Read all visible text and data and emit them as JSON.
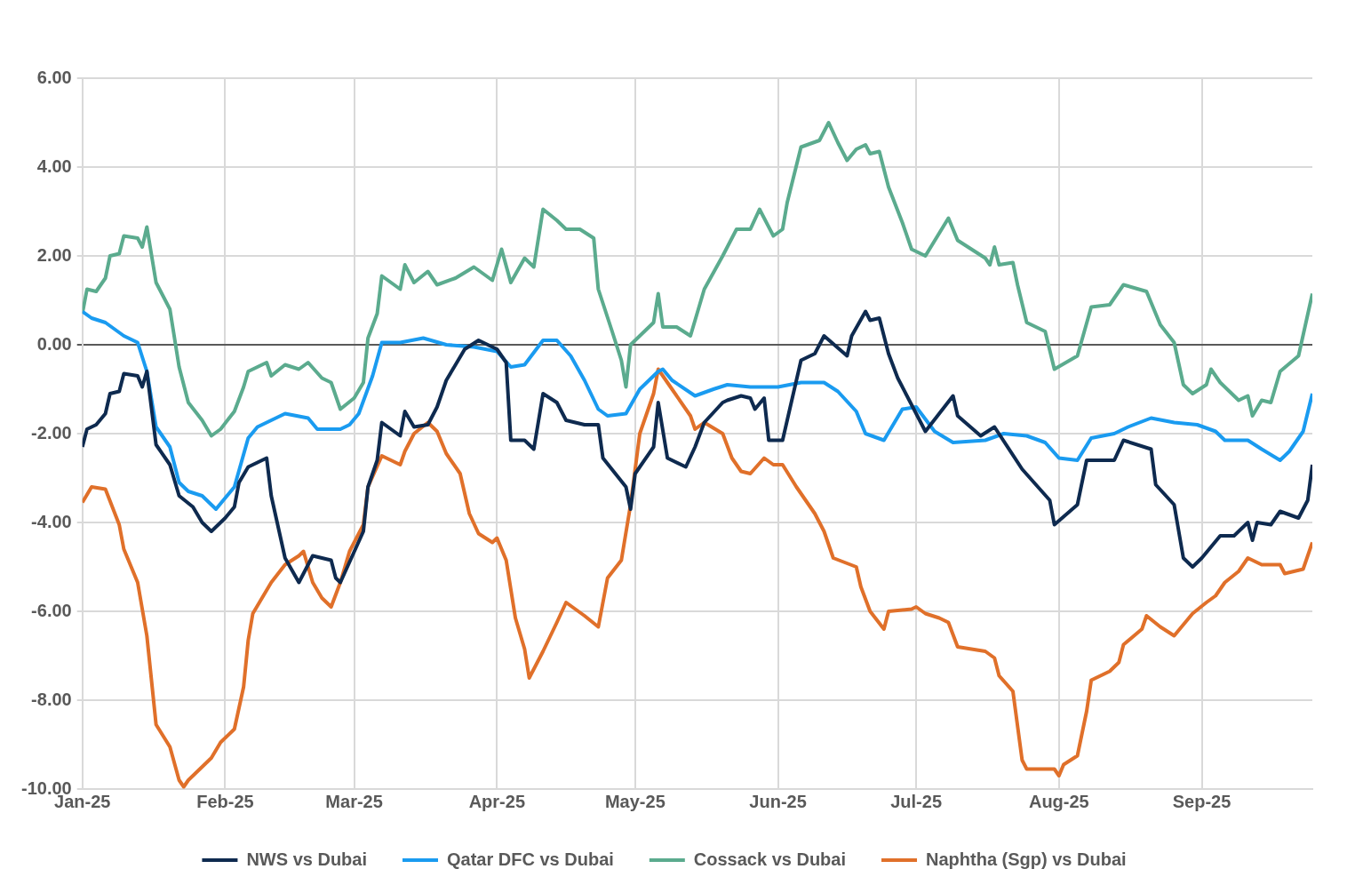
{
  "chart_data": {
    "type": "line",
    "xlim": [
      "2025-01-01",
      "2025-09-25"
    ],
    "xticks": [
      {
        "value": "2025-01-01",
        "label": "Jan-25"
      },
      {
        "value": "2025-02-01",
        "label": "Feb-25"
      },
      {
        "value": "2025-03-01",
        "label": "Mar-25"
      },
      {
        "value": "2025-04-01",
        "label": "Apr-25"
      },
      {
        "value": "2025-05-01",
        "label": "May-25"
      },
      {
        "value": "2025-06-01",
        "label": "Jun-25"
      },
      {
        "value": "2025-07-01",
        "label": "Jul-25"
      },
      {
        "value": "2025-08-01",
        "label": "Aug-25"
      },
      {
        "value": "2025-09-01",
        "label": "Sep-25"
      }
    ],
    "ylim": [
      -10,
      6
    ],
    "yticks": [
      {
        "value": -10,
        "label": "-10.00"
      },
      {
        "value": -8,
        "label": "-8.00"
      },
      {
        "value": -6,
        "label": "-6.00"
      },
      {
        "value": -4,
        "label": "-4.00"
      },
      {
        "value": -2,
        "label": "-2.00"
      },
      {
        "value": 0,
        "label": "0.00"
      },
      {
        "value": 2,
        "label": "2.00"
      },
      {
        "value": 4,
        "label": "4.00"
      },
      {
        "value": 6,
        "label": "6.00"
      }
    ],
    "grid": true,
    "legend": "bottom",
    "marker": "none",
    "line_style": "solid",
    "series": [
      {
        "name": "NWS vs Dubai",
        "color": "#0e2a4f",
        "x": [
          "2025-01-01",
          "2025-01-02",
          "2025-01-04",
          "2025-01-06",
          "2025-01-07",
          "2025-01-09",
          "2025-01-10",
          "2025-01-13",
          "2025-01-14",
          "2025-01-15",
          "2025-01-17",
          "2025-01-20",
          "2025-01-22",
          "2025-01-25",
          "2025-01-27",
          "2025-01-29",
          "2025-02-01",
          "2025-02-03",
          "2025-02-04",
          "2025-02-06",
          "2025-02-08",
          "2025-02-10",
          "2025-02-11",
          "2025-02-14",
          "2025-02-17",
          "2025-02-20",
          "2025-02-24",
          "2025-02-25",
          "2025-02-26",
          "2025-03-03",
          "2025-03-04",
          "2025-03-06",
          "2025-03-07",
          "2025-03-11",
          "2025-03-12",
          "2025-03-14",
          "2025-03-17",
          "2025-03-19",
          "2025-03-21",
          "2025-03-25",
          "2025-03-28",
          "2025-04-01",
          "2025-04-03",
          "2025-04-04",
          "2025-04-07",
          "2025-04-09",
          "2025-04-11",
          "2025-04-14",
          "2025-04-16",
          "2025-04-20",
          "2025-04-23",
          "2025-04-24",
          "2025-04-29",
          "2025-04-30",
          "2025-05-01",
          "2025-05-05",
          "2025-05-06",
          "2025-05-08",
          "2025-05-12",
          "2025-05-14",
          "2025-05-16",
          "2025-05-20",
          "2025-05-21",
          "2025-05-24",
          "2025-05-26",
          "2025-05-27",
          "2025-05-29",
          "2025-05-30",
          "2025-06-02",
          "2025-06-03",
          "2025-06-06",
          "2025-06-09",
          "2025-06-11",
          "2025-06-16",
          "2025-06-17",
          "2025-06-20",
          "2025-06-21",
          "2025-06-23",
          "2025-06-25",
          "2025-06-27",
          "2025-07-03",
          "2025-07-09",
          "2025-07-10",
          "2025-07-15",
          "2025-07-18",
          "2025-07-24",
          "2025-07-30",
          "2025-07-31",
          "2025-08-05",
          "2025-08-07",
          "2025-08-13",
          "2025-08-15",
          "2025-08-21",
          "2025-08-22",
          "2025-08-26",
          "2025-08-28",
          "2025-08-30",
          "2025-09-01",
          "2025-09-03",
          "2025-09-05",
          "2025-09-08",
          "2025-09-11",
          "2025-09-12",
          "2025-09-13",
          "2025-09-16",
          "2025-09-18",
          "2025-09-22",
          "2025-09-24",
          "2025-09-25"
        ],
        "values": [
          -2.3,
          -1.9,
          -1.8,
          -1.55,
          -1.1,
          -1.05,
          -0.65,
          -0.7,
          -0.95,
          -0.6,
          -2.25,
          -2.7,
          -3.4,
          -3.65,
          -4.0,
          -4.2,
          -3.9,
          -3.65,
          -3.1,
          -2.75,
          -2.65,
          -2.55,
          -3.4,
          -4.8,
          -5.35,
          -4.75,
          -4.85,
          -5.25,
          -5.35,
          -4.2,
          -3.2,
          -2.6,
          -1.75,
          -2.05,
          -1.5,
          -1.85,
          -1.8,
          -1.4,
          -0.8,
          -0.1,
          0.1,
          -0.1,
          -0.4,
          -2.15,
          -2.15,
          -2.35,
          -1.1,
          -1.3,
          -1.7,
          -1.8,
          -1.8,
          -2.55,
          -3.2,
          -3.7,
          -2.9,
          -2.3,
          -1.3,
          -2.55,
          -2.75,
          -2.3,
          -1.75,
          -1.3,
          -1.25,
          -1.15,
          -1.2,
          -1.45,
          -1.2,
          -2.15,
          -2.15,
          -1.7,
          -0.35,
          -0.2,
          0.2,
          -0.25,
          0.2,
          0.75,
          0.55,
          0.6,
          -0.2,
          -0.75,
          -1.95,
          -1.15,
          -1.6,
          -2.05,
          -1.85,
          -2.8,
          -3.5,
          -4.05,
          -3.6,
          -2.6,
          -2.6,
          -2.15,
          -2.35,
          -3.15,
          -3.6,
          -4.8,
          -5.0,
          -4.8,
          -4.55,
          -4.3,
          -4.3,
          -4.0,
          -4.4,
          -4.0,
          -4.05,
          -3.75,
          -3.9,
          -3.5,
          -2.7
        ]
      },
      {
        "name": "Qatar DFC vs Dubai",
        "color": "#1a9bf0",
        "x": [
          "2025-01-01",
          "2025-01-03",
          "2025-01-06",
          "2025-01-08",
          "2025-01-10",
          "2025-01-13",
          "2025-01-15",
          "2025-01-17",
          "2025-01-20",
          "2025-01-22",
          "2025-01-24",
          "2025-01-27",
          "2025-01-30",
          "2025-02-01",
          "2025-02-03",
          "2025-02-06",
          "2025-02-08",
          "2025-02-14",
          "2025-02-19",
          "2025-02-21",
          "2025-02-26",
          "2025-02-28",
          "2025-03-02",
          "2025-03-05",
          "2025-03-07",
          "2025-03-11",
          "2025-03-16",
          "2025-03-21",
          "2025-03-27",
          "2025-04-01",
          "2025-04-04",
          "2025-04-07",
          "2025-04-11",
          "2025-04-14",
          "2025-04-17",
          "2025-04-20",
          "2025-04-23",
          "2025-04-25",
          "2025-04-29",
          "2025-05-02",
          "2025-05-06",
          "2025-05-07",
          "2025-05-09",
          "2025-05-14",
          "2025-05-18",
          "2025-05-21",
          "2025-05-26",
          "2025-06-01",
          "2025-06-06",
          "2025-06-11",
          "2025-06-14",
          "2025-06-18",
          "2025-06-20",
          "2025-06-24",
          "2025-06-28",
          "2025-07-01",
          "2025-07-05",
          "2025-07-09",
          "2025-07-16",
          "2025-07-20",
          "2025-07-25",
          "2025-07-29",
          "2025-08-01",
          "2025-08-05",
          "2025-08-08",
          "2025-08-13",
          "2025-08-16",
          "2025-08-21",
          "2025-08-26",
          "2025-08-31",
          "2025-09-04",
          "2025-09-06",
          "2025-09-11",
          "2025-09-14",
          "2025-09-18",
          "2025-09-20",
          "2025-09-23",
          "2025-09-25"
        ],
        "values": [
          0.75,
          0.6,
          0.5,
          0.35,
          0.2,
          0.05,
          -0.6,
          -1.85,
          -2.3,
          -3.1,
          -3.3,
          -3.4,
          -3.7,
          -3.45,
          -3.2,
          -2.1,
          -1.85,
          -1.55,
          -1.65,
          -1.9,
          -1.9,
          -1.8,
          -1.55,
          -0.7,
          0.05,
          0.05,
          0.15,
          0,
          -0.05,
          -0.15,
          -0.5,
          -0.45,
          0.1,
          0.1,
          -0.25,
          -0.8,
          -1.45,
          -1.6,
          -1.55,
          -1.0,
          -0.6,
          -0.55,
          -0.8,
          -1.15,
          -1.0,
          -0.9,
          -0.95,
          -0.95,
          -0.85,
          -0.85,
          -1.05,
          -1.5,
          -2.0,
          -2.15,
          -1.45,
          -1.4,
          -1.95,
          -2.2,
          -2.15,
          -2.0,
          -2.05,
          -2.2,
          -2.55,
          -2.6,
          -2.1,
          -2.0,
          -1.85,
          -1.65,
          -1.75,
          -1.8,
          -1.95,
          -2.15,
          -2.15,
          -2.35,
          -2.6,
          -2.4,
          -1.95,
          -1.1
        ]
      },
      {
        "name": "Cossack vs Dubai",
        "color": "#5bab8e",
        "x": [
          "2025-01-01",
          "2025-01-02",
          "2025-01-04",
          "2025-01-06",
          "2025-01-07",
          "2025-01-09",
          "2025-01-10",
          "2025-01-13",
          "2025-01-14",
          "2025-01-15",
          "2025-01-17",
          "2025-01-20",
          "2025-01-22",
          "2025-01-24",
          "2025-01-27",
          "2025-01-29",
          "2025-01-31",
          "2025-02-03",
          "2025-02-05",
          "2025-02-06",
          "2025-02-08",
          "2025-02-10",
          "2025-02-11",
          "2025-02-14",
          "2025-02-17",
          "2025-02-19",
          "2025-02-22",
          "2025-02-24",
          "2025-02-26",
          "2025-03-01",
          "2025-03-03",
          "2025-03-04",
          "2025-03-06",
          "2025-03-07",
          "2025-03-11",
          "2025-03-12",
          "2025-03-14",
          "2025-03-17",
          "2025-03-19",
          "2025-03-23",
          "2025-03-27",
          "2025-03-31",
          "2025-04-02",
          "2025-04-04",
          "2025-04-07",
          "2025-04-09",
          "2025-04-11",
          "2025-04-14",
          "2025-04-16",
          "2025-04-19",
          "2025-04-22",
          "2025-04-23",
          "2025-04-26",
          "2025-04-28",
          "2025-04-29",
          "2025-04-30",
          "2025-05-05",
          "2025-05-06",
          "2025-05-07",
          "2025-05-10",
          "2025-05-13",
          "2025-05-16",
          "2025-05-20",
          "2025-05-23",
          "2025-05-26",
          "2025-05-28",
          "2025-05-31",
          "2025-06-02",
          "2025-06-03",
          "2025-06-06",
          "2025-06-10",
          "2025-06-12",
          "2025-06-14",
          "2025-06-16",
          "2025-06-18",
          "2025-06-20",
          "2025-06-21",
          "2025-06-23",
          "2025-06-25",
          "2025-06-28",
          "2025-06-30",
          "2025-07-03",
          "2025-07-08",
          "2025-07-10",
          "2025-07-16",
          "2025-07-17",
          "2025-07-18",
          "2025-07-19",
          "2025-07-22",
          "2025-07-23",
          "2025-07-25",
          "2025-07-29",
          "2025-07-31",
          "2025-08-05",
          "2025-08-08",
          "2025-08-12",
          "2025-08-15",
          "2025-08-20",
          "2025-08-23",
          "2025-08-26",
          "2025-08-28",
          "2025-08-30",
          "2025-09-02",
          "2025-09-03",
          "2025-09-05",
          "2025-09-09",
          "2025-09-11",
          "2025-09-12",
          "2025-09-14",
          "2025-09-16",
          "2025-09-18",
          "2025-09-22",
          "2025-09-25"
        ],
        "values": [
          0.7,
          1.25,
          1.2,
          1.5,
          2.0,
          2.05,
          2.45,
          2.4,
          2.2,
          2.65,
          1.4,
          0.8,
          -0.5,
          -1.3,
          -1.7,
          -2.05,
          -1.9,
          -1.5,
          -0.95,
          -0.6,
          -0.5,
          -0.4,
          -0.7,
          -0.45,
          -0.55,
          -0.4,
          -0.75,
          -0.85,
          -1.45,
          -1.2,
          -0.85,
          0.15,
          0.7,
          1.55,
          1.25,
          1.8,
          1.4,
          1.65,
          1.35,
          1.5,
          1.75,
          1.45,
          2.15,
          1.4,
          1.95,
          1.75,
          3.05,
          2.8,
          2.6,
          2.6,
          2.4,
          1.25,
          0.3,
          -0.35,
          -0.95,
          0,
          0.5,
          1.15,
          0.4,
          0.4,
          0.2,
          1.25,
          2.0,
          2.6,
          2.6,
          3.05,
          2.45,
          2.6,
          3.2,
          4.45,
          4.6,
          5.0,
          4.55,
          4.15,
          4.4,
          4.5,
          4.3,
          4.35,
          3.55,
          2.75,
          2.15,
          2.0,
          2.85,
          2.35,
          1.95,
          1.8,
          2.2,
          1.8,
          1.85,
          1.35,
          0.5,
          0.3,
          -0.55,
          -0.25,
          0.85,
          0.9,
          1.35,
          1.2,
          0.45,
          0.05,
          -0.9,
          -1.1,
          -0.9,
          -0.55,
          -0.85,
          -1.25,
          -1.15,
          -1.6,
          -1.25,
          -1.3,
          -0.6,
          -0.25,
          1.15
        ]
      },
      {
        "name": "Naphtha (Sgp) vs Dubai",
        "color": "#e0702a",
        "x": [
          "2025-01-01",
          "2025-01-03",
          "2025-01-06",
          "2025-01-09",
          "2025-01-10",
          "2025-01-13",
          "2025-01-15",
          "2025-01-17",
          "2025-01-20",
          "2025-01-22",
          "2025-01-23",
          "2025-01-24",
          "2025-01-27",
          "2025-01-29",
          "2025-01-31",
          "2025-02-03",
          "2025-02-05",
          "2025-02-06",
          "2025-02-07",
          "2025-02-11",
          "2025-02-14",
          "2025-02-17",
          "2025-02-18",
          "2025-02-20",
          "2025-02-22",
          "2025-02-24",
          "2025-02-26",
          "2025-02-28",
          "2025-03-03",
          "2025-03-04",
          "2025-03-07",
          "2025-03-11",
          "2025-03-12",
          "2025-03-14",
          "2025-03-17",
          "2025-03-19",
          "2025-03-21",
          "2025-03-24",
          "2025-03-26",
          "2025-03-28",
          "2025-03-31",
          "2025-04-01",
          "2025-04-03",
          "2025-04-05",
          "2025-04-07",
          "2025-04-08",
          "2025-04-11",
          "2025-04-14",
          "2025-04-16",
          "2025-04-20",
          "2025-04-23",
          "2025-04-25",
          "2025-04-28",
          "2025-04-30",
          "2025-05-02",
          "2025-05-05",
          "2025-05-06",
          "2025-05-09",
          "2025-05-13",
          "2025-05-14",
          "2025-05-16",
          "2025-05-20",
          "2025-05-22",
          "2025-05-24",
          "2025-05-26",
          "2025-05-29",
          "2025-05-31",
          "2025-06-02",
          "2025-06-05",
          "2025-06-09",
          "2025-06-11",
          "2025-06-13",
          "2025-06-18",
          "2025-06-19",
          "2025-06-21",
          "2025-06-24",
          "2025-06-25",
          "2025-06-30",
          "2025-07-01",
          "2025-07-03",
          "2025-07-06",
          "2025-07-08",
          "2025-07-10",
          "2025-07-16",
          "2025-07-18",
          "2025-07-19",
          "2025-07-22",
          "2025-07-24",
          "2025-07-25",
          "2025-07-31",
          "2025-08-01",
          "2025-08-02",
          "2025-08-05",
          "2025-08-07",
          "2025-08-08",
          "2025-08-12",
          "2025-08-14",
          "2025-08-15",
          "2025-08-19",
          "2025-08-20",
          "2025-08-23",
          "2025-08-26",
          "2025-08-30",
          "2025-09-02",
          "2025-09-04",
          "2025-09-06",
          "2025-09-09",
          "2025-09-11",
          "2025-09-14",
          "2025-09-18",
          "2025-09-19",
          "2025-09-23",
          "2025-09-25"
        ],
        "values": [
          -3.55,
          -3.2,
          -3.25,
          -4.05,
          -4.6,
          -5.35,
          -6.55,
          -8.55,
          -9.05,
          -9.8,
          -9.95,
          -9.8,
          -9.5,
          -9.3,
          -8.95,
          -8.65,
          -7.7,
          -6.65,
          -6.05,
          -5.35,
          -4.95,
          -4.75,
          -4.65,
          -5.35,
          -5.7,
          -5.9,
          -5.35,
          -4.65,
          -4.05,
          -3.2,
          -2.5,
          -2.7,
          -2.4,
          -2.0,
          -1.75,
          -1.95,
          -2.45,
          -2.9,
          -3.8,
          -4.25,
          -4.45,
          -4.35,
          -4.85,
          -6.15,
          -6.85,
          -7.5,
          -6.9,
          -6.25,
          -5.8,
          -6.1,
          -6.35,
          -5.25,
          -4.85,
          -3.6,
          -2.0,
          -1.1,
          -0.55,
          -1.0,
          -1.6,
          -1.9,
          -1.75,
          -2.0,
          -2.55,
          -2.85,
          -2.9,
          -2.55,
          -2.7,
          -2.7,
          -3.2,
          -3.8,
          -4.2,
          -4.8,
          -5.0,
          -5.45,
          -6.0,
          -6.4,
          -6.0,
          -5.95,
          -5.9,
          -6.05,
          -6.15,
          -6.25,
          -6.8,
          -6.9,
          -7.05,
          -7.45,
          -7.8,
          -9.35,
          -9.55,
          -9.55,
          -9.7,
          -9.45,
          -9.25,
          -8.25,
          -7.55,
          -7.35,
          -7.15,
          -6.75,
          -6.4,
          -6.1,
          -6.35,
          -6.55,
          -6.05,
          -5.8,
          -5.65,
          -5.35,
          -5.1,
          -4.8,
          -4.95,
          -4.95,
          -5.15,
          -5.05,
          -4.45
        ]
      }
    ]
  }
}
